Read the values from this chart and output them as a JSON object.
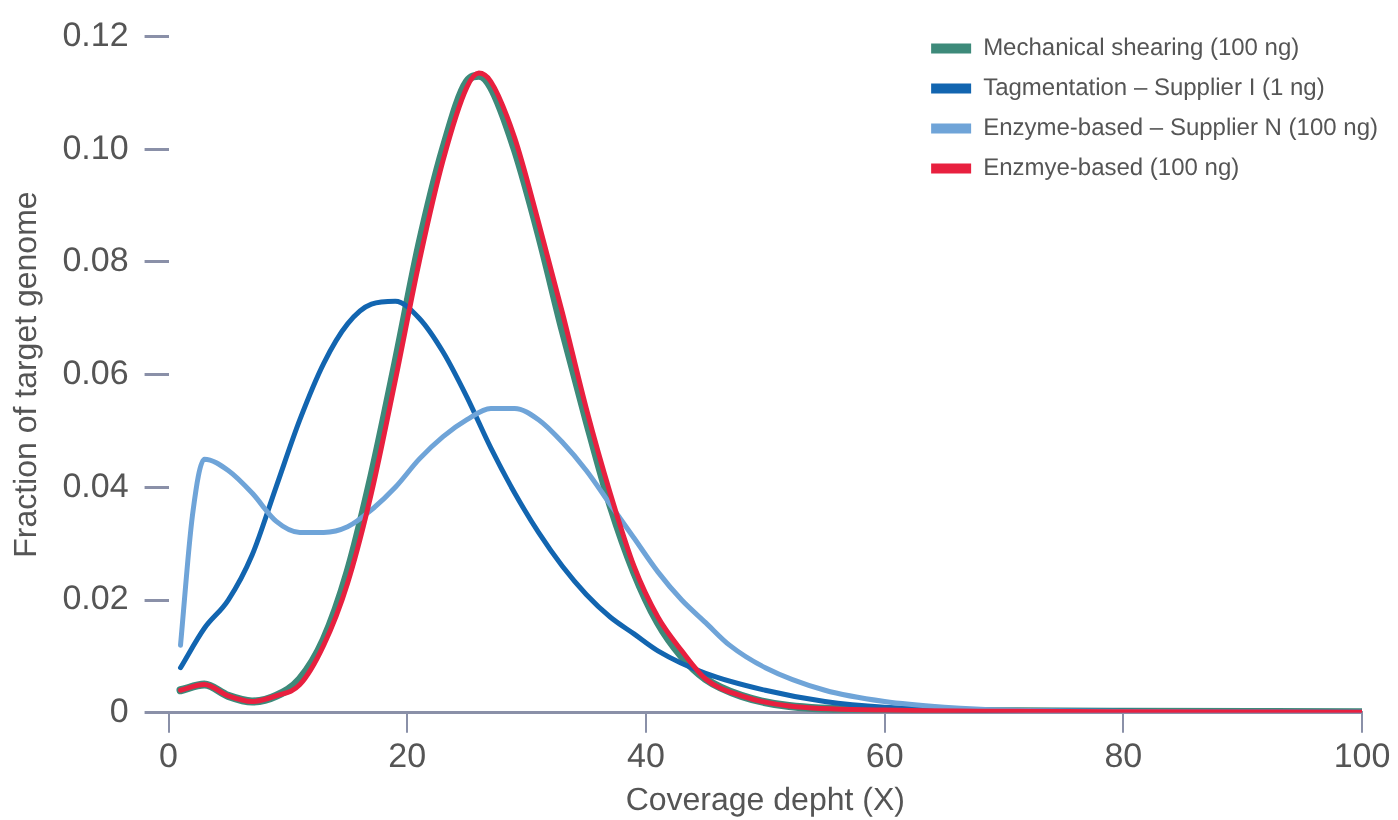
{
  "chart_data": {
    "type": "line",
    "xlabel": "Coverage depht (X)",
    "ylabel": "Fraction of target genome",
    "xlim": [
      0,
      100
    ],
    "xticks": [
      0,
      20,
      40,
      60,
      80,
      100
    ],
    "ylim": [
      0,
      0.12
    ],
    "yticks": [
      {
        "value": 0,
        "label": "0"
      },
      0.02,
      0.04,
      0.06,
      {
        "value": 0.08,
        "label": "0.08"
      },
      {
        "value": 0.1,
        "label": "0.10"
      },
      0.12
    ],
    "grid": false,
    "legend": "top right",
    "marker": "none",
    "line_style": "solid",
    "series": [
      {
        "name": "Mechanical shearing (100 ng)",
        "color": "#3d8a7a",
        "x": [
          1,
          3,
          5,
          7,
          9,
          11,
          13,
          15,
          17,
          19,
          21,
          23,
          25,
          26,
          27,
          29,
          31,
          33,
          35,
          37,
          39,
          41,
          43,
          45,
          48,
          52,
          60,
          80,
          100
        ],
        "values": [
          0.004,
          0.005,
          0.003,
          0.002,
          0.003,
          0.006,
          0.013,
          0.025,
          0.042,
          0.062,
          0.083,
          0.1,
          0.112,
          0.113,
          0.111,
          0.1,
          0.085,
          0.068,
          0.052,
          0.037,
          0.025,
          0.016,
          0.01,
          0.006,
          0.003,
          0.0012,
          0.0005,
          0.0002,
          0.0001
        ]
      },
      {
        "name": "Tagmentation – Supplier I (1 ng)",
        "color": "#1265b0",
        "x": [
          1,
          3,
          5,
          7,
          9,
          11,
          13,
          15,
          17,
          19,
          21,
          23,
          25,
          27,
          29,
          31,
          33,
          35,
          37,
          39,
          41,
          45,
          50,
          55,
          60,
          70,
          100
        ],
        "values": [
          0.008,
          0.015,
          0.02,
          0.028,
          0.04,
          0.052,
          0.062,
          0.069,
          0.0725,
          0.073,
          0.07,
          0.064,
          0.056,
          0.047,
          0.039,
          0.032,
          0.026,
          0.021,
          0.017,
          0.014,
          0.011,
          0.007,
          0.004,
          0.002,
          0.001,
          0.0004,
          0.0001
        ]
      },
      {
        "name": "Enzyme-based – Supplier N (100 ng)",
        "color": "#6fa4d8",
        "x": [
          1,
          2,
          3,
          5,
          7,
          9,
          11,
          13,
          15,
          17,
          19,
          21,
          23,
          25,
          27,
          29,
          31,
          33,
          35,
          37,
          39,
          41,
          43,
          45,
          47,
          50,
          55,
          60,
          65,
          70,
          100
        ],
        "values": [
          0.012,
          0.035,
          0.045,
          0.043,
          0.039,
          0.034,
          0.032,
          0.032,
          0.033,
          0.036,
          0.04,
          0.045,
          0.049,
          0.052,
          0.054,
          0.054,
          0.052,
          0.048,
          0.043,
          0.037,
          0.031,
          0.025,
          0.02,
          0.016,
          0.012,
          0.008,
          0.004,
          0.002,
          0.001,
          0.0005,
          0.0001
        ]
      },
      {
        "name": "Enzmye-based (100 ng)",
        "color": "#e8203f",
        "x": [
          1,
          3,
          5,
          7,
          9,
          11,
          13,
          15,
          17,
          19,
          21,
          23,
          25,
          26,
          27,
          29,
          31,
          33,
          35,
          37,
          39,
          41,
          43,
          45,
          48,
          52,
          60,
          80,
          100
        ],
        "values": [
          0.004,
          0.005,
          0.003,
          0.002,
          0.003,
          0.005,
          0.012,
          0.023,
          0.039,
          0.059,
          0.08,
          0.098,
          0.111,
          0.1135,
          0.112,
          0.102,
          0.087,
          0.071,
          0.054,
          0.039,
          0.026,
          0.017,
          0.011,
          0.006,
          0.003,
          0.0012,
          0.0005,
          0.0002,
          0.0001
        ]
      }
    ]
  }
}
